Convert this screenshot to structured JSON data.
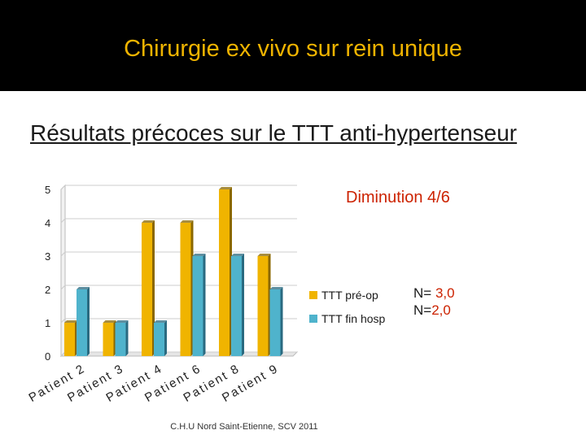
{
  "title": "Chirurgie ex vivo sur rein unique",
  "subtitle": "Résultats précoces sur le TTT anti-hypertenseur",
  "annotation": "Diminution 4/6",
  "stats": [
    {
      "label": "N= ",
      "value": "3,0"
    },
    {
      "label": "N=",
      "value": "2,0"
    }
  ],
  "footer": "C.H.U Nord Saint-Etienne, SCV 2011",
  "colors": {
    "pre_op": "#f0b400",
    "fin_hosp": "#4fb3cc",
    "header_bg": "#000000"
  },
  "chart_data": {
    "type": "bar",
    "categories": [
      "Patient 2",
      "Patient 3",
      "Patient 4",
      "Patient 6",
      "Patient 8",
      "Patient 9"
    ],
    "series": [
      {
        "name": "TTT pré-op",
        "values": [
          1,
          1,
          4,
          4,
          5,
          3
        ]
      },
      {
        "name": "TTT fin hosp",
        "values": [
          2,
          1,
          1,
          3,
          3,
          2
        ]
      }
    ],
    "yticks": [
      0,
      1,
      2,
      3,
      4,
      5
    ],
    "ylim": [
      0,
      5
    ],
    "legend": "right"
  }
}
